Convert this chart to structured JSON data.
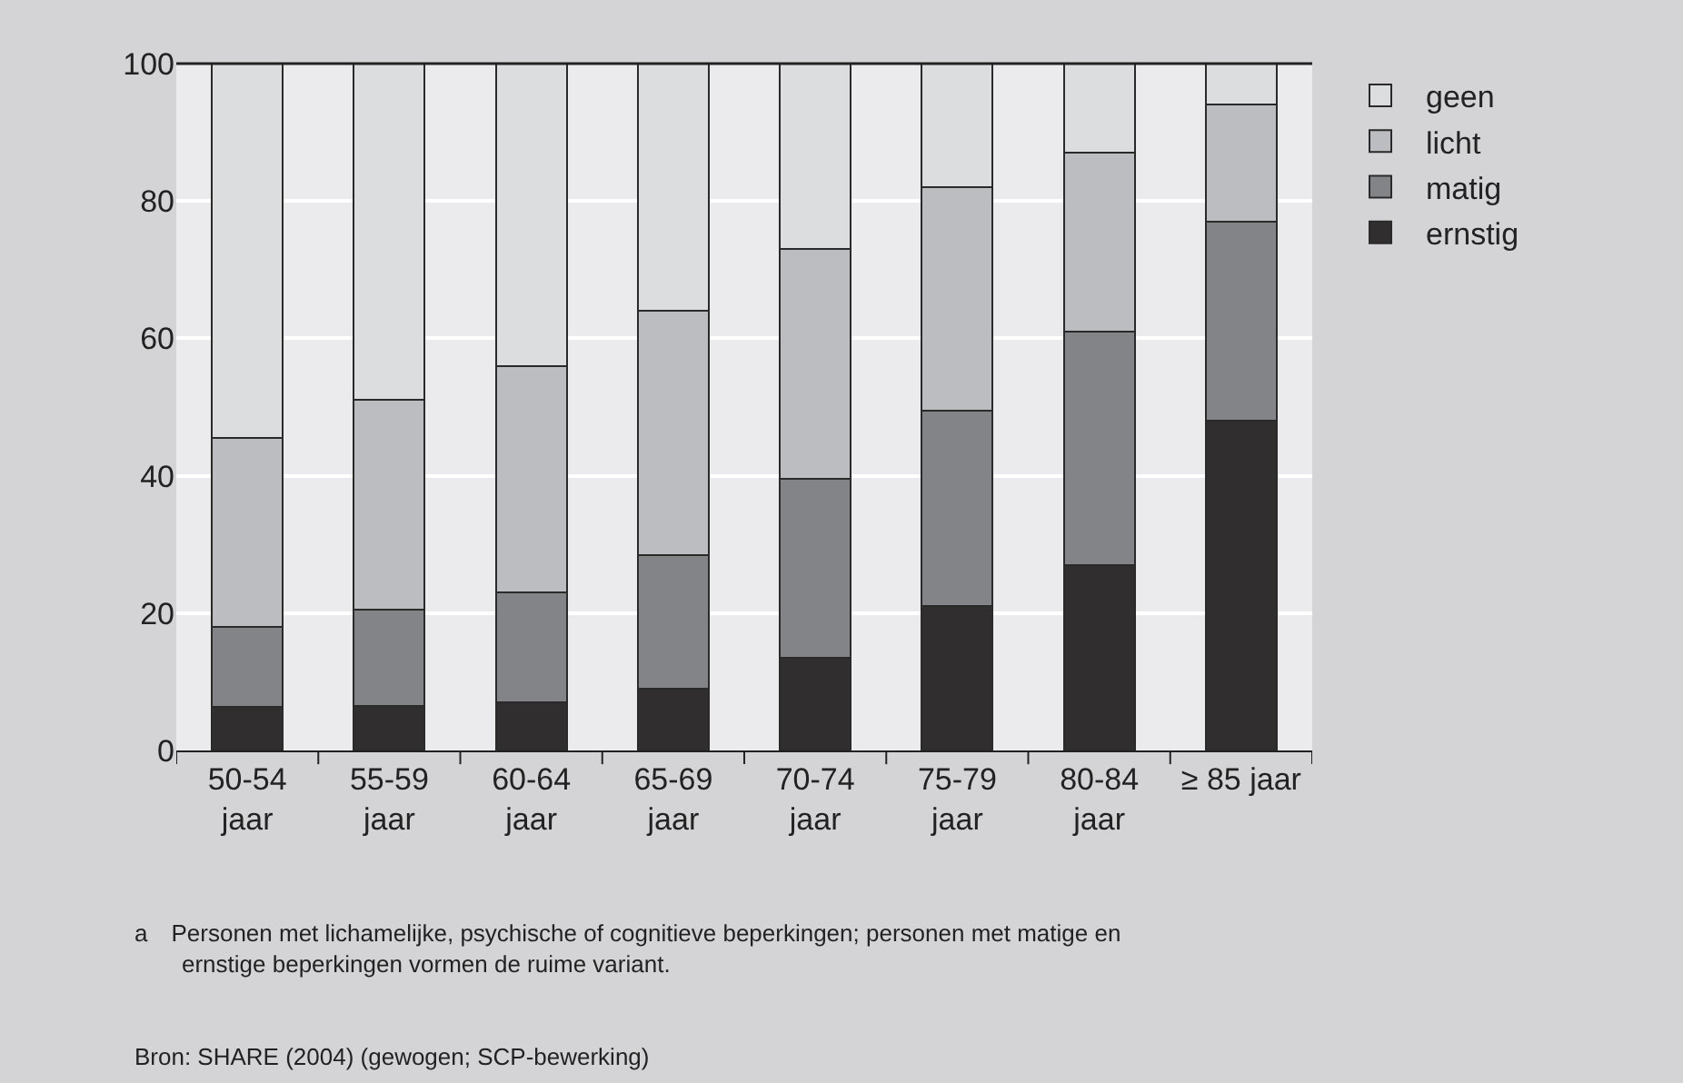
{
  "chart_data": {
    "type": "bar",
    "stacked": true,
    "categories": [
      "50-54\njaar",
      "55-59\njaar",
      "60-64\njaar",
      "65-69\njaar",
      "70-74\njaar",
      "75-79\njaar",
      "80-84\njaar",
      "≥ 85 jaar"
    ],
    "series": [
      {
        "name": "ernstig",
        "color": "#302e2f",
        "values": [
          6.3,
          6.5,
          7,
          9,
          13.5,
          21,
          27,
          48
        ]
      },
      {
        "name": "matig",
        "color": "#838487",
        "values": [
          11.7,
          14,
          16,
          19.5,
          26,
          28.5,
          34,
          29
        ]
      },
      {
        "name": "licht",
        "color": "#bcbdc0",
        "values": [
          27.5,
          30.5,
          33,
          35.5,
          33.5,
          32.5,
          26,
          17
        ]
      },
      {
        "name": "geen",
        "color": "#dcdddf",
        "values": [
          54.5,
          49,
          44,
          36,
          27,
          18,
          13,
          6
        ]
      }
    ],
    "ylim": [
      0,
      100
    ],
    "yticks": [
      0,
      20,
      40,
      60,
      80,
      100
    ],
    "grid": "y",
    "legend": "top right",
    "annotations": [
      "a Personen met lichamelijke, psychische of cognitieve beperkingen; personen met matige en\n  ernstige beperkingen vormen de ruime variant.",
      "Bron: SHARE (2004) (gewogen; SCP-bewerking)"
    ]
  }
}
